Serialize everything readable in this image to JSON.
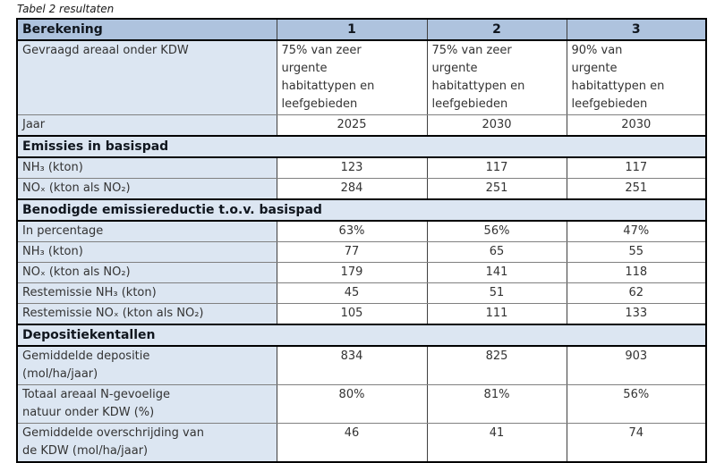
{
  "title": "Tabel 2 resultaten",
  "colors": {
    "header_bg": "#aec3de",
    "label_bg": "#dce6f2",
    "value_bg": "#ffffff",
    "border_dark": "#000000",
    "border_mid": "#404040",
    "border_light": "#808080",
    "heading_text": "#10161e",
    "body_text": "#333333"
  },
  "table": {
    "header": {
      "label": "Berekening",
      "columns": [
        "1",
        "2",
        "3"
      ]
    },
    "sections": [
      {
        "heading": null,
        "rows": [
          {
            "label": "Gevraagd areaal onder KDW",
            "align": "left",
            "values": [
              "75% van zeer\nurgente\nhabitattypen en\nleefgebieden",
              "75% van zeer\nurgente\nhabitattypen en\nleefgebieden",
              "90% van\nurgente\nhabitattypen en\nleefgebieden"
            ]
          },
          {
            "label": "Jaar",
            "values": [
              "2025",
              "2030",
              "2030"
            ]
          }
        ]
      },
      {
        "heading": "Emissies in basispad",
        "rows": [
          {
            "label": "NH₃ (kton)",
            "values": [
              "123",
              "117",
              "117"
            ]
          },
          {
            "label": "NOₓ (kton als NO₂)",
            "values": [
              "284",
              "251",
              "251"
            ]
          }
        ]
      },
      {
        "heading": "Benodigde emissiereductie t.o.v. basispad",
        "rows": [
          {
            "label": "In percentage",
            "values": [
              "63%",
              "56%",
              "47%"
            ]
          },
          {
            "label": "NH₃ (kton)",
            "values": [
              "77",
              "65",
              "55"
            ]
          },
          {
            "label": "NOₓ (kton als NO₂)",
            "values": [
              "179",
              "141",
              "118"
            ]
          },
          {
            "label": "Restemissie NH₃ (kton)",
            "values": [
              "45",
              "51",
              "62"
            ]
          },
          {
            "label": "Restemissie NOₓ (kton als NO₂)",
            "values": [
              "105",
              "111",
              "133"
            ]
          }
        ]
      },
      {
        "heading": "Depositiekentallen",
        "rows": [
          {
            "label": "Gemiddelde depositie\n(mol/ha/jaar)",
            "values": [
              "834",
              "825",
              "903"
            ]
          },
          {
            "label": "Totaal areaal N-gevoelige\nnatuur onder KDW (%)",
            "values": [
              "80%",
              "81%",
              "56%"
            ]
          },
          {
            "label": "Gemiddelde overschrijding van\nde KDW (mol/ha/jaar)",
            "values": [
              "46",
              "41",
              "74"
            ]
          }
        ]
      }
    ]
  }
}
